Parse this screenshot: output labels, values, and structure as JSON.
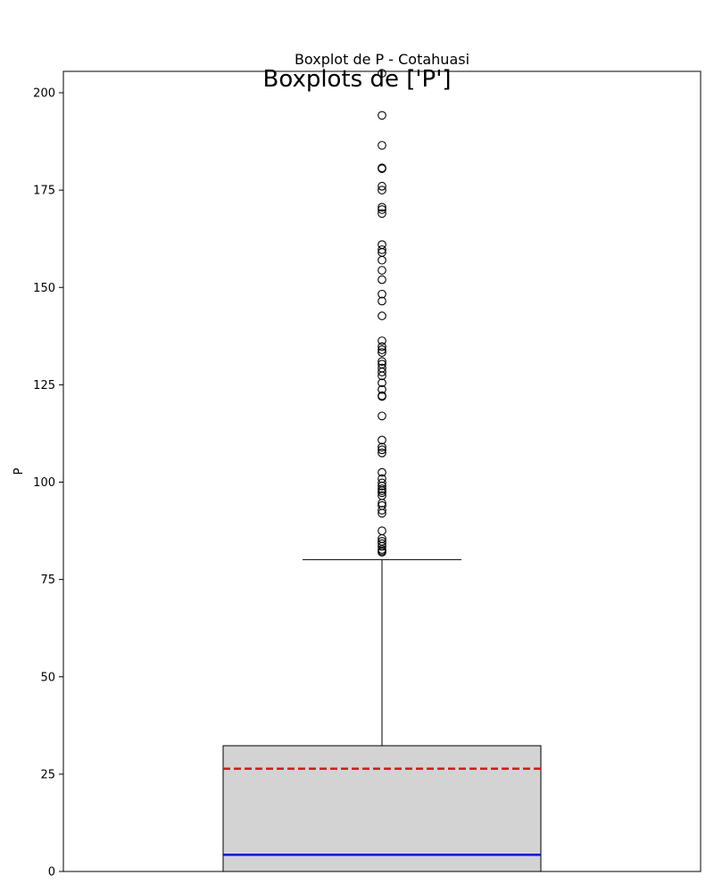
{
  "suptitle": "Boxplots de ['P']",
  "chart_data": {
    "type": "box",
    "title": "Boxplot de P - Cotahuasi",
    "xlabel": "",
    "ylabel": "P",
    "ylim": [
      0,
      205.5
    ],
    "yticks": [
      0,
      25,
      50,
      75,
      100,
      125,
      150,
      175,
      200
    ],
    "grid": false,
    "box": {
      "whisker_low": 0,
      "q1": 0,
      "median": 4.3,
      "mean": 26.4,
      "q3": 32.3,
      "whisker_high": 80.1,
      "fliers": [
        82.0,
        82.3,
        82.7,
        83.5,
        84.2,
        84.8,
        85.5,
        87.5,
        92.0,
        92.8,
        94.0,
        94.6,
        96.5,
        97.3,
        97.8,
        98.3,
        99.0,
        99.8,
        100.9,
        102.5,
        107.5,
        108.3,
        109.0,
        110.8,
        117.0,
        122.0,
        122.2,
        123.8,
        125.5,
        127.3,
        128.3,
        129.3,
        130.3,
        131.0,
        133.3,
        134.0,
        134.8,
        136.3,
        142.7,
        146.5,
        148.3,
        152.0,
        154.4,
        157.0,
        159.0,
        159.7,
        161.0,
        169.0,
        170.0,
        170.6,
        175.0,
        176.0,
        180.5,
        180.7,
        186.5,
        194.2,
        205.0
      ]
    },
    "colors": {
      "box_fill": "#d3d3d3",
      "median": "#0000ff",
      "mean": "#ff0000",
      "lines": "#000000"
    }
  }
}
